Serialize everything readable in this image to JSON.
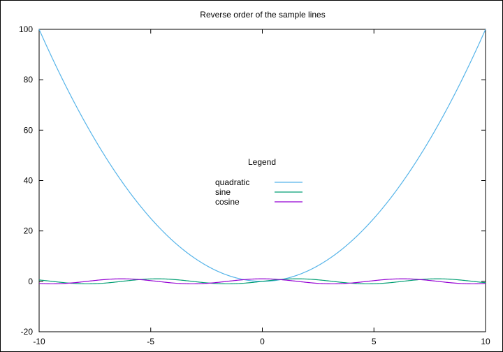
{
  "chart_data": {
    "type": "line",
    "title": "Reverse order of the sample lines",
    "xlabel": "",
    "ylabel": "",
    "xlim": [
      -10,
      10
    ],
    "ylim": [
      -20,
      100
    ],
    "xticks": [
      -10,
      -5,
      0,
      5,
      10
    ],
    "yticks": [
      -20,
      0,
      20,
      40,
      60,
      80,
      100
    ],
    "grid": false,
    "legend": {
      "title": "Legend",
      "placement": "center"
    },
    "series": [
      {
        "name": "quadratic",
        "color": "#56b4e9",
        "x": [
          -10,
          -9,
          -8,
          -7,
          -6,
          -5,
          -4,
          -3,
          -2,
          -1,
          0,
          1,
          2,
          3,
          4,
          5,
          6,
          7,
          8,
          9,
          10
        ],
        "y": [
          100,
          81,
          64,
          49,
          36,
          25,
          16,
          9,
          4,
          1,
          0,
          1,
          4,
          9,
          16,
          25,
          36,
          49,
          64,
          81,
          100
        ]
      },
      {
        "name": "sine",
        "color": "#009e73",
        "x": [
          -10,
          -9,
          -8,
          -7,
          -6,
          -5,
          -4,
          -3,
          -2,
          -1,
          0,
          1,
          2,
          3,
          4,
          5,
          6,
          7,
          8,
          9,
          10
        ],
        "y": [
          0.544,
          -0.412,
          -0.989,
          -0.657,
          0.279,
          0.959,
          0.757,
          -0.141,
          -0.909,
          -0.841,
          0,
          0.841,
          0.909,
          0.141,
          -0.757,
          -0.959,
          -0.279,
          0.657,
          0.989,
          0.412,
          -0.544
        ]
      },
      {
        "name": "cosine",
        "color": "#9400d3",
        "x": [
          -10,
          -9,
          -8,
          -7,
          -6,
          -5,
          -4,
          -3,
          -2,
          -1,
          0,
          1,
          2,
          3,
          4,
          5,
          6,
          7,
          8,
          9,
          10
        ],
        "y": [
          -0.839,
          -0.911,
          -0.146,
          0.754,
          0.96,
          0.284,
          -0.654,
          -0.99,
          -0.416,
          0.54,
          1,
          0.54,
          -0.416,
          -0.99,
          -0.654,
          0.284,
          0.96,
          0.754,
          -0.146,
          -0.911,
          -0.839
        ]
      }
    ]
  }
}
